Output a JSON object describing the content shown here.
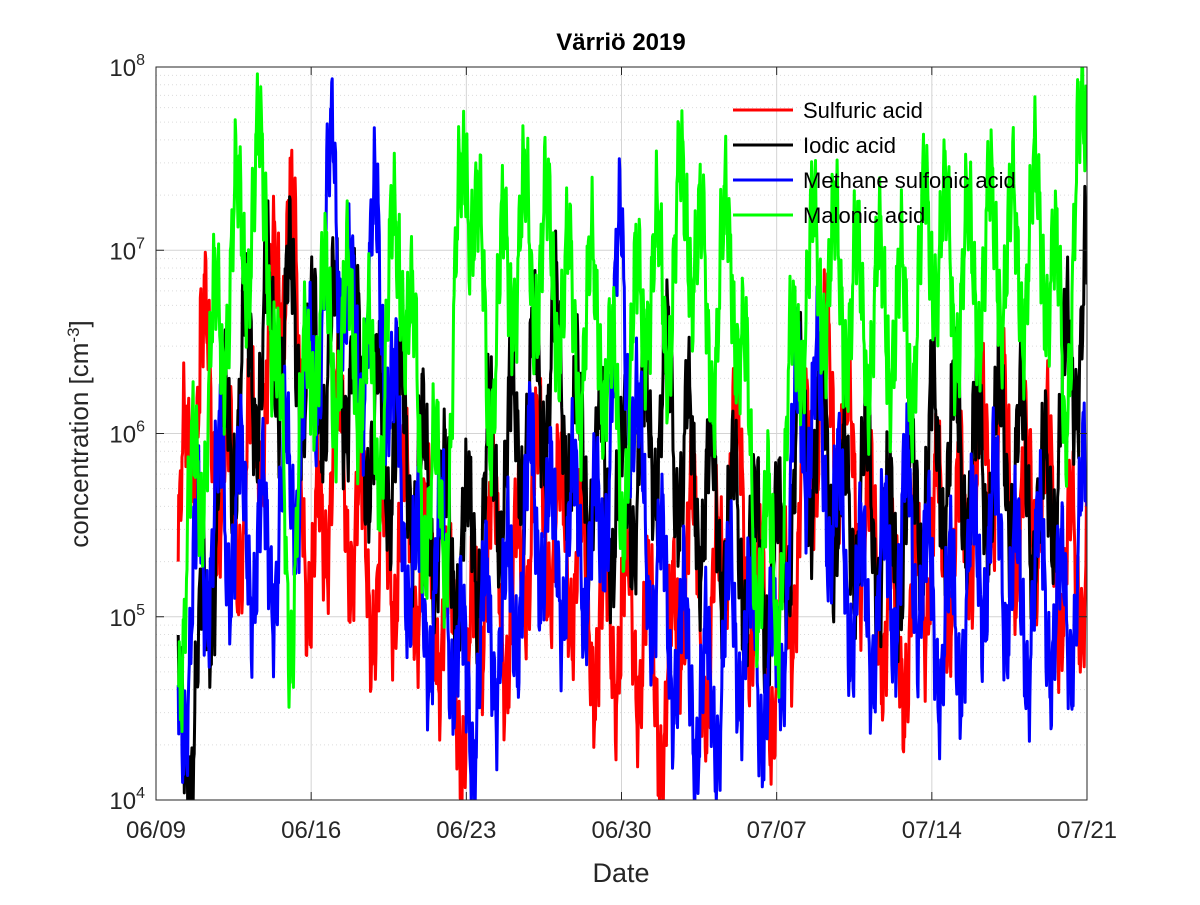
{
  "chart_data": {
    "type": "line",
    "title": "Värriö 2019",
    "xlabel": "Date",
    "ylabel": "concentration [cm",
    "ylabel_sup": "-3",
    "ylabel_close": "]",
    "x_ticks": [
      "06/09",
      "06/16",
      "06/23",
      "06/30",
      "07/07",
      "07/14",
      "07/21"
    ],
    "y_ticks": [
      {
        "base": "10",
        "exp": "4"
      },
      {
        "base": "10",
        "exp": "5"
      },
      {
        "base": "10",
        "exp": "6"
      },
      {
        "base": "10",
        "exp": "7"
      },
      {
        "base": "10",
        "exp": "8"
      }
    ],
    "x_range": [
      "2019-06-09",
      "2019-07-21"
    ],
    "y_scale": "log",
    "ylim": [
      10000,
      100000000
    ],
    "grid": true,
    "minor_grid": true,
    "legend_position": "top-right",
    "series": [
      {
        "name": "Sulfuric acid",
        "color": "#ff0000",
        "x": [
          "06-10",
          "06-11",
          "06-12",
          "06-13",
          "06-14",
          "06-15",
          "06-16",
          "06-17",
          "06-18",
          "06-19",
          "06-20",
          "06-21",
          "06-22",
          "06-23",
          "06-24",
          "06-25",
          "06-26",
          "06-27",
          "06-28",
          "06-29",
          "06-30",
          "07-01",
          "07-02",
          "07-03",
          "07-04",
          "07-05",
          "07-06",
          "07-07",
          "07-08",
          "07-09",
          "07-10",
          "07-11",
          "07-12",
          "07-13",
          "07-14",
          "07-15",
          "07-16",
          "07-17",
          "07-18",
          "07-19",
          "07-20",
          "07-21"
        ],
        "y": [
          200000,
          3000000,
          500000,
          400000,
          2000000,
          20000000,
          100000,
          1000000,
          300000,
          150000,
          300000,
          200000,
          100000,
          30000,
          300000,
          80000,
          500000,
          300000,
          200000,
          80000,
          100000,
          80000,
          30000,
          300000,
          50000,
          1000000,
          100000,
          50000,
          300000,
          2000000,
          1000000,
          300000,
          100000,
          80000,
          300000,
          200000,
          500000,
          1000000,
          300000,
          600000,
          150000,
          250000
        ]
      },
      {
        "name": "Iodic acid",
        "color": "#000000",
        "x": [
          "06-10",
          "06-11",
          "06-12",
          "06-13",
          "06-14",
          "06-15",
          "06-16",
          "06-17",
          "06-18",
          "06-19",
          "06-20",
          "06-21",
          "06-22",
          "06-23",
          "06-24",
          "06-25",
          "06-26",
          "06-27",
          "06-28",
          "06-29",
          "06-30",
          "07-01",
          "07-02",
          "07-03",
          "07-04",
          "07-05",
          "07-06",
          "07-07",
          "07-08",
          "07-09",
          "07-10",
          "07-11",
          "07-12",
          "07-13",
          "07-14",
          "07-15",
          "07-16",
          "07-17",
          "07-18",
          "07-19",
          "07-20",
          "07-21"
        ],
        "y": [
          15000,
          50000,
          800000,
          2000000,
          3000000,
          4000000,
          2000000,
          3000000,
          2000000,
          800000,
          1000000,
          500000,
          300000,
          200000,
          500000,
          800000,
          1500000,
          2500000,
          800000,
          600000,
          400000,
          800000,
          1500000,
          600000,
          400000,
          300000,
          200000,
          150000,
          800000,
          1000000,
          300000,
          500000,
          200000,
          400000,
          700000,
          800000,
          600000,
          800000,
          700000,
          300000,
          1500000,
          6500000
        ]
      },
      {
        "name": "Methane sulfonic acid",
        "color": "#0000ff",
        "x": [
          "06-10",
          "06-11",
          "06-12",
          "06-13",
          "06-14",
          "06-15",
          "06-16",
          "06-17",
          "06-18",
          "06-19",
          "06-20",
          "06-21",
          "06-22",
          "06-23",
          "06-24",
          "06-25",
          "06-26",
          "06-27",
          "06-28",
          "06-29",
          "06-30",
          "07-01",
          "07-02",
          "07-03",
          "07-04",
          "07-05",
          "07-06",
          "07-07",
          "07-08",
          "07-09",
          "07-10",
          "07-11",
          "07-12",
          "07-13",
          "07-14",
          "07-15",
          "07-16",
          "07-17",
          "07-18",
          "07-19",
          "07-20",
          "07-21"
        ],
        "y": [
          30000,
          200000,
          400000,
          300000,
          200000,
          500000,
          1500000,
          25000000,
          2000000,
          10000000,
          500000,
          100000,
          200000,
          30000,
          80000,
          100000,
          500000,
          200000,
          300000,
          200000,
          9000000,
          300000,
          100000,
          50000,
          30000,
          100000,
          60000,
          40000,
          1500000,
          1000000,
          200000,
          100000,
          150000,
          300000,
          100000,
          80000,
          200000,
          300000,
          100000,
          150000,
          80000,
          400000
        ]
      },
      {
        "name": "Malonic acid",
        "color": "#00ff00",
        "x": [
          "06-10",
          "06-11",
          "06-12",
          "06-13",
          "06-14",
          "06-15",
          "06-16",
          "06-17",
          "06-18",
          "06-19",
          "06-20",
          "06-21",
          "06-22",
          "06-23",
          "06-24",
          "06-25",
          "06-26",
          "06-27",
          "06-28",
          "06-29",
          "06-30",
          "07-01",
          "07-02",
          "07-03",
          "07-04",
          "07-05",
          "07-06",
          "07-07",
          "07-08",
          "07-09",
          "07-10",
          "07-11",
          "07-12",
          "07-13",
          "07-14",
          "07-15",
          "07-16",
          "07-17",
          "07-18",
          "07-19",
          "07-20",
          "07-21"
        ],
        "y": [
          80000,
          800000,
          5000000,
          15000000,
          20000000,
          100000,
          4000000,
          3000000,
          3500000,
          1000000,
          15000000,
          600000,
          300000,
          50000000,
          2000000,
          10000000,
          10000000,
          8000000,
          3000000,
          5000000,
          600000,
          8000000,
          5000000,
          20000000,
          3000000,
          12000000,
          300000,
          150000,
          5000000,
          8000000,
          6000000,
          4000000,
          5000000,
          3000000,
          15000000,
          6000000,
          8000000,
          10000000,
          8000000,
          15000000,
          2000000,
          80000000
        ]
      }
    ]
  }
}
